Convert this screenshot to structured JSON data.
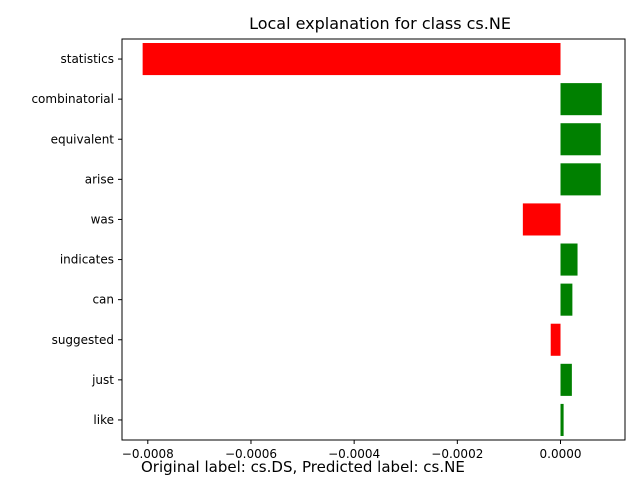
{
  "chart_data": {
    "type": "bar",
    "orientation": "horizontal",
    "title": "Local explanation for class cs.NE",
    "xlabel": "",
    "ylabel": "",
    "categories": [
      "statistics",
      "combinatorial",
      "equivalent",
      "arise",
      "was",
      "indicates",
      "can",
      "suggested",
      "just",
      "like"
    ],
    "values": [
      -0.00081,
      8e-05,
      7.8e-05,
      7.8e-05,
      -7.3e-05,
      3.3e-05,
      2.3e-05,
      -1.9e-05,
      2.2e-05,
      6e-06
    ],
    "xlim": [
      -0.00085,
      0.000125
    ],
    "xticks": [
      -0.0008,
      -0.0006,
      -0.0004,
      -0.0002,
      0.0
    ],
    "xtick_labels": [
      "−0.0008",
      "−0.0006",
      "−0.0004",
      "−0.0002",
      "0.0000"
    ],
    "grid": false,
    "colors": {
      "positive": "#008000",
      "negative": "#ff0000"
    }
  },
  "caption": "Original label: cs.DS, Predicted label: cs.NE"
}
